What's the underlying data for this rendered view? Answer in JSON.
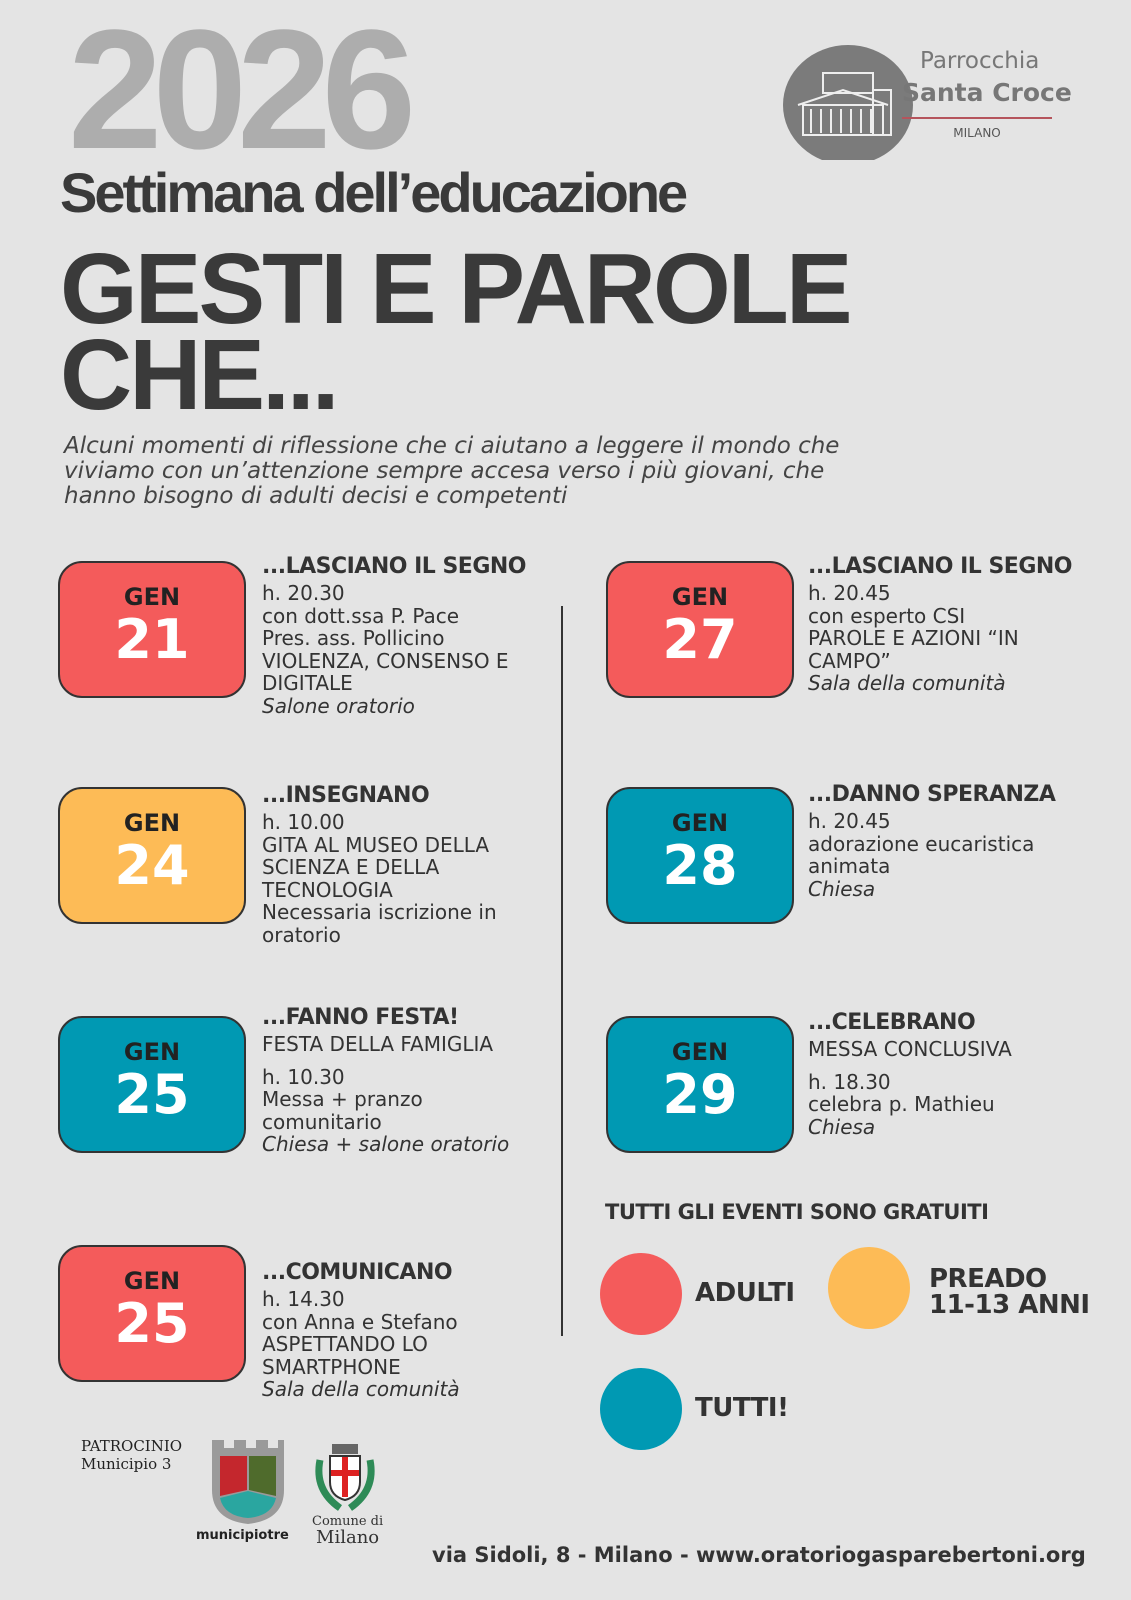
{
  "header": {
    "year": "2026",
    "subtitle": "Settimana dell’educazione",
    "title_line1": "GESTI E PAROLE",
    "title_line2": "CHE...",
    "intro": "Alcuni momenti di riflessione che ci aiutano a leggere il mondo che viviamo con un’attenzione sempre accesa verso i più giovani, che hanno bisogno di adulti decisi e competenti"
  },
  "logo": {
    "line1": "Parrocchia",
    "line2": "Santa Croce",
    "line3": "MILANO"
  },
  "colors": {
    "adulti": "#f45b5b",
    "preado": "#fdbb56",
    "tutti": "#0099b3",
    "background": "#e4e4e4"
  },
  "events": [
    {
      "month": "GEN",
      "day": "21",
      "color": "adulti",
      "heading": "...LASCIANO IL SEGNO",
      "lines": [
        "h. 20.30",
        "con dott.ssa P. Pace",
        "Pres. ass. Pollicino",
        "VIOLENZA, CONSENSO E DIGITALE"
      ],
      "place": "Salone oratorio"
    },
    {
      "month": "GEN",
      "day": "24",
      "color": "preado",
      "heading": "...INSEGNANO",
      "lines": [
        "h. 10.00",
        "GITA AL MUSEO DELLA SCIENZA E DELLA TECNOLOGIA",
        "Necessaria iscrizione in oratorio"
      ],
      "place": ""
    },
    {
      "month": "GEN",
      "day": "25",
      "color": "tutti",
      "heading": "...FANNO FESTA!",
      "lines": [
        "FESTA DELLA FAMIGLIA",
        "h. 10.30",
        "Messa + pranzo comunitario"
      ],
      "place": "Chiesa + salone oratorio"
    },
    {
      "month": "GEN",
      "day": "25",
      "color": "adulti",
      "heading": "...COMUNICANO",
      "lines": [
        "h. 14.30",
        "con Anna e Stefano",
        "ASPETTANDO LO SMARTPHONE"
      ],
      "place": "Sala della comunità"
    },
    {
      "month": "GEN",
      "day": "27",
      "color": "adulti",
      "heading": "...LASCIANO IL SEGNO",
      "lines": [
        "h. 20.45",
        "con esperto CSI",
        "PAROLE E AZIONI “IN CAMPO”"
      ],
      "place": "Sala della comunità"
    },
    {
      "month": "GEN",
      "day": "28",
      "color": "tutti",
      "heading": "...DANNO SPERANZA",
      "lines": [
        "h. 20.45",
        "adorazione eucaristica animata"
      ],
      "place": "Chiesa"
    },
    {
      "month": "GEN",
      "day": "29",
      "color": "tutti",
      "heading": "...CELEBRANO",
      "lines": [
        "MESSA CONCLUSIVA",
        "h. 18.30",
        "celebra p. Mathieu"
      ],
      "place": "Chiesa"
    }
  ],
  "legend": {
    "note": "TUTTI GLI EVENTI SONO GRATUITI",
    "adulti": "ADULTI",
    "preado_1": "PREADO",
    "preado_2": "11-13 ANNI",
    "tutti": "TUTTI!"
  },
  "footer": {
    "patrocinio_1": "PATROCINIO",
    "patrocinio_2": "Municipio 3",
    "municipio_logo": "municipiotre",
    "comune_logo_1": "Comune di",
    "comune_logo_2": "Milano",
    "address": "via Sidoli, 8 - Milano - www.oratoriogasparebertoni.org"
  }
}
